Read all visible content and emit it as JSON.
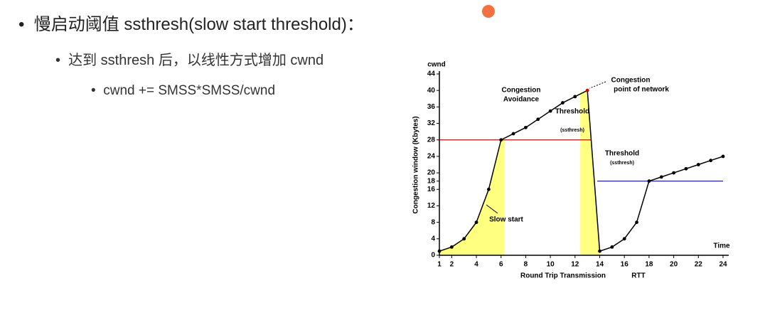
{
  "slide": {
    "bullets": [
      "慢启动阈值 ssthresh(slow start threshold)：",
      "达到 ssthresh 后，以线性方式增加 cwnd",
      "cwnd += SMSS*SMSS/cwnd"
    ]
  },
  "chart_data": {
    "type": "line",
    "y_label": "Congestion window (Kbytes)",
    "y_unit_label": "cwnd",
    "x_label": "Round Trip Transmission",
    "x_label_suffix": "RTT",
    "x_end_label": "Time",
    "x": [
      1,
      2,
      3,
      4,
      5,
      6,
      7,
      8,
      9,
      10,
      11,
      12,
      13,
      14,
      15,
      16,
      17,
      18,
      19,
      20,
      21,
      22,
      23,
      24
    ],
    "series": [
      {
        "name": "cwnd",
        "color": "#000000",
        "values": [
          1,
          2,
          4,
          8,
          16,
          28,
          29.5,
          31,
          33,
          35,
          37,
          38.5,
          40,
          1,
          2,
          4,
          8,
          18,
          19,
          20,
          21,
          22,
          23,
          24
        ]
      }
    ],
    "thresholds": [
      {
        "value": 28,
        "color": "#d40000",
        "from": 1,
        "to": 13.3,
        "label": [
          "Threshold",
          "(ssthresh)"
        ]
      },
      {
        "value": 18,
        "color": "#3030c0",
        "from": 13.8,
        "to": 24,
        "label": [
          "Threshold",
          "(ssthresh)"
        ]
      }
    ],
    "annotations": [
      [
        "Congestion",
        "Avoidance"
      ],
      [
        "Congestion",
        "point of network"
      ],
      [
        "Slow start"
      ]
    ],
    "shade_color": "#ffff80",
    "xlim": [
      1,
      24
    ],
    "xticks": [
      1,
      2,
      4,
      6,
      8,
      10,
      12,
      14,
      16,
      18,
      20,
      22,
      24
    ],
    "ylim": [
      0,
      44
    ],
    "yticks": [
      0,
      4,
      8,
      12,
      16,
      18,
      20,
      24,
      28,
      32,
      36,
      40,
      44
    ]
  }
}
